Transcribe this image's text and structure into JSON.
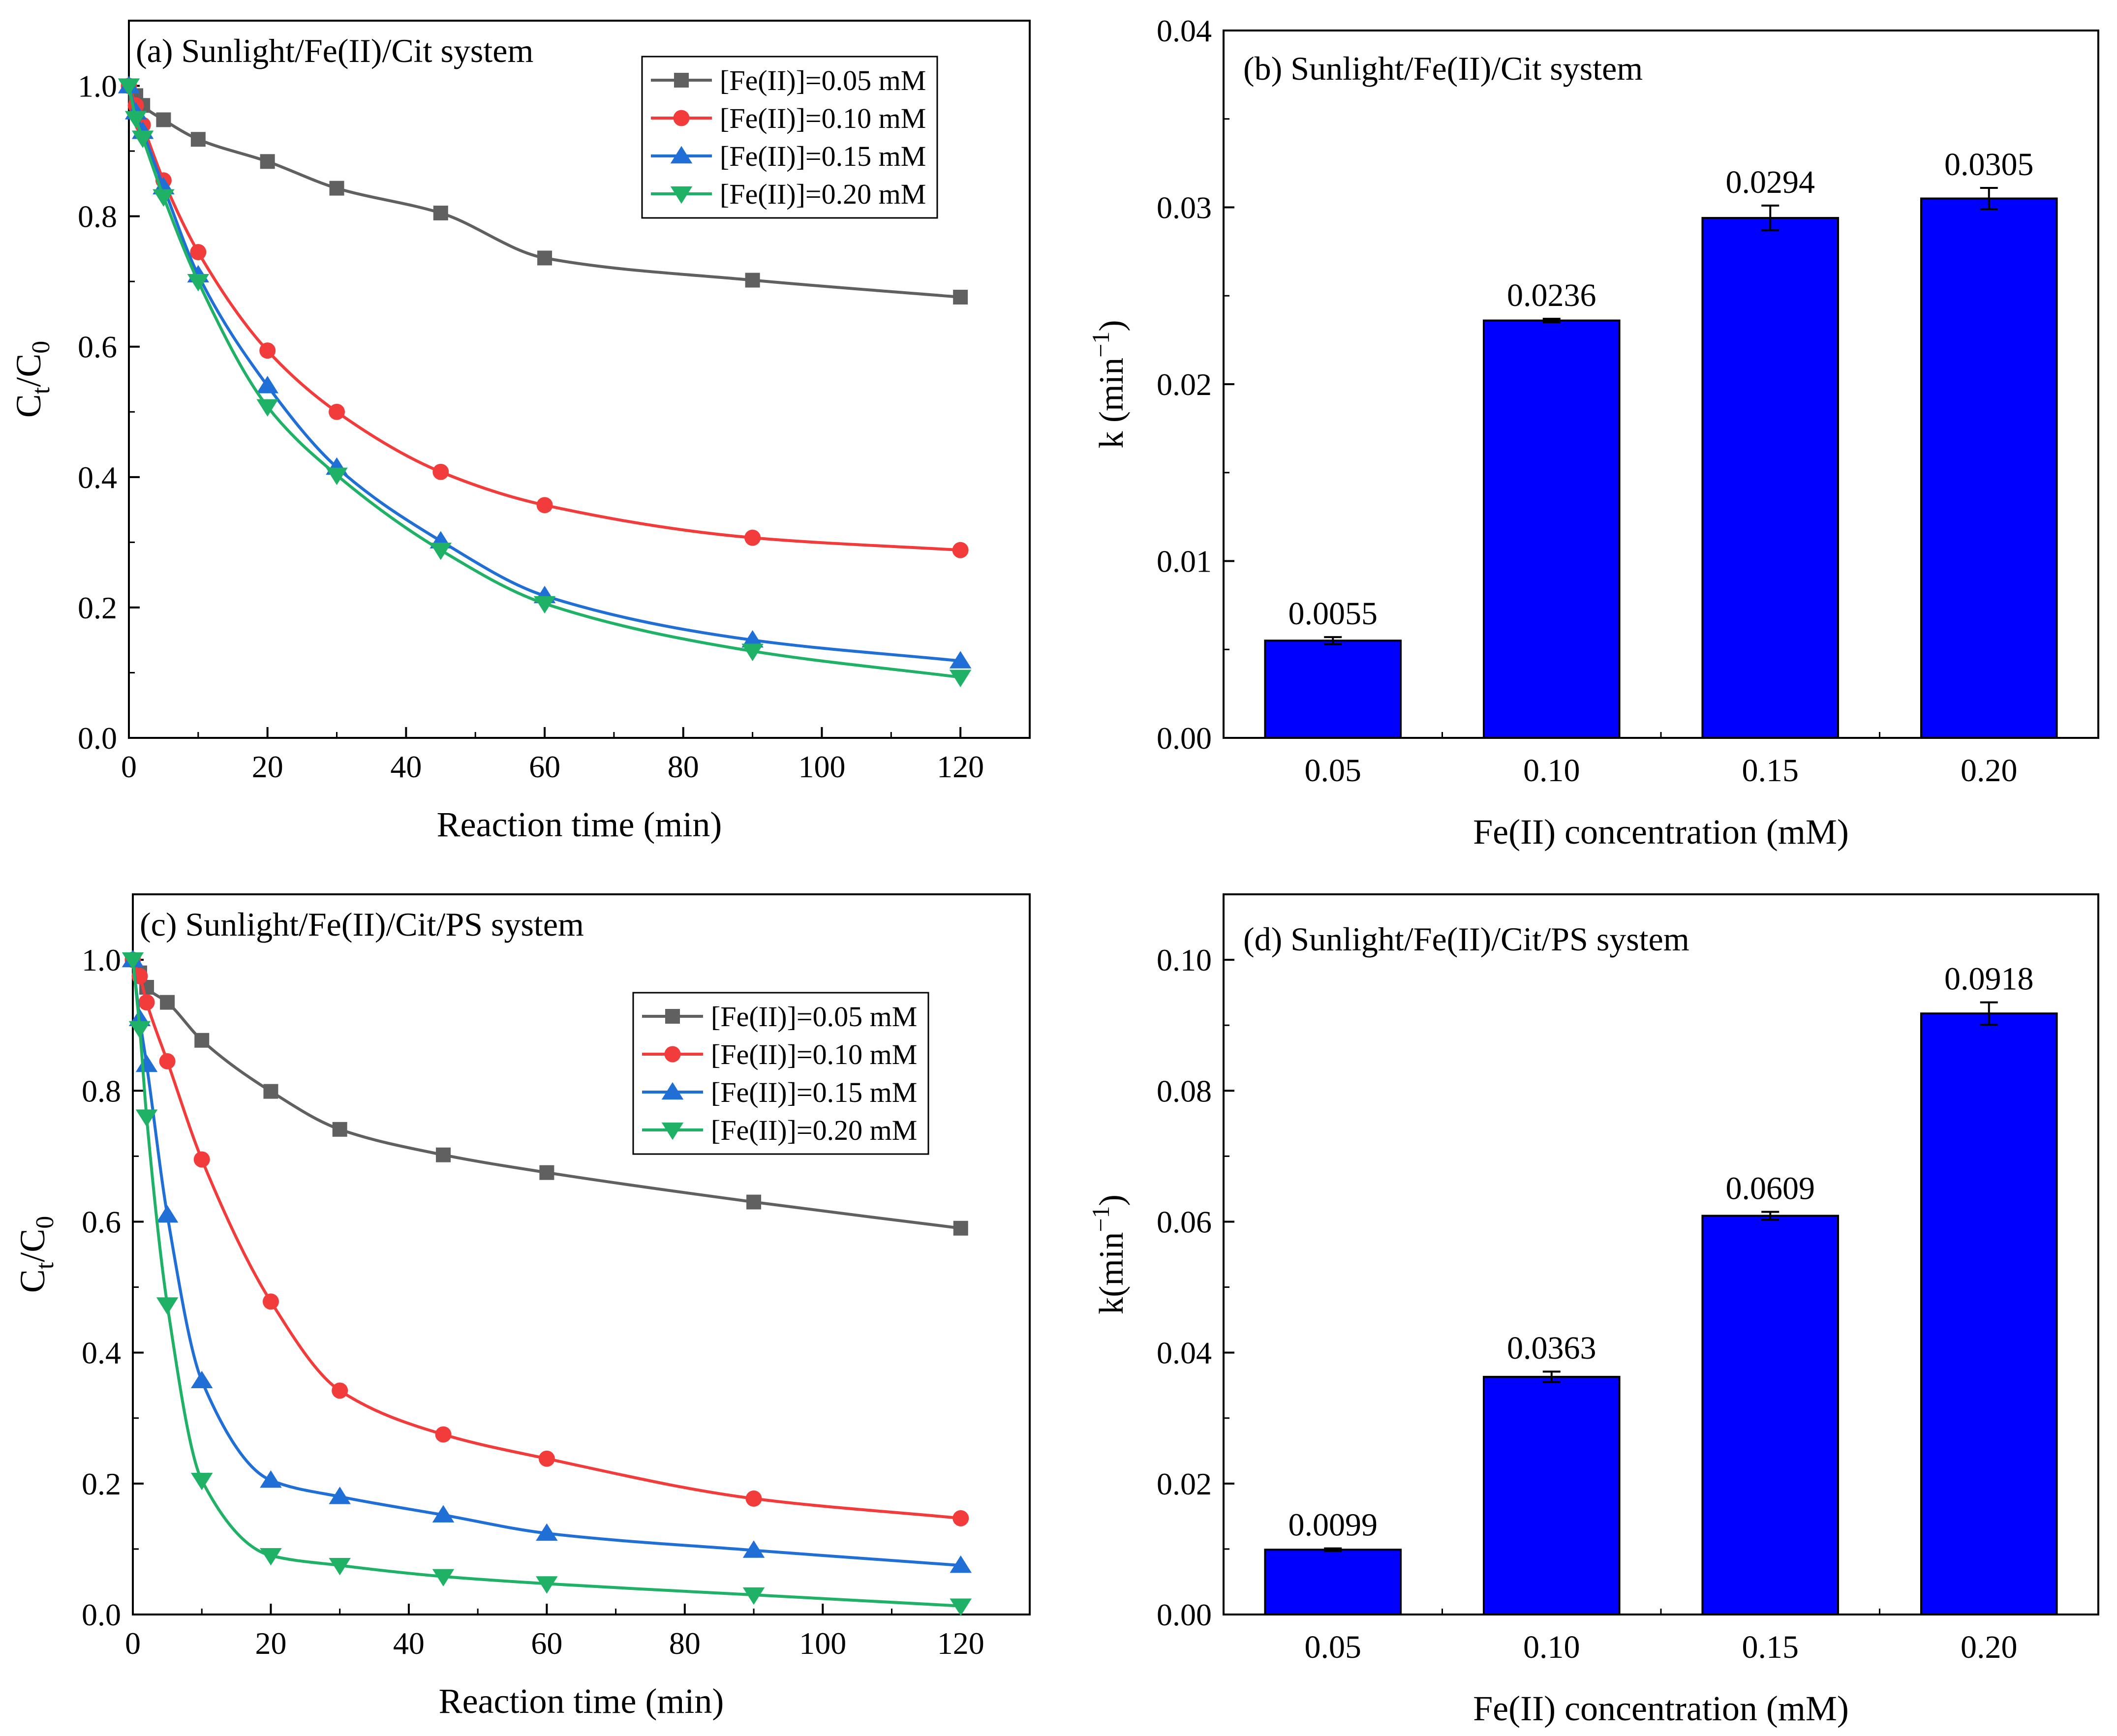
{
  "chart_data": [
    {
      "id": "a",
      "type": "line",
      "title": "(a) Sunlight/Fe(II)/Cit system",
      "xlabel": "Reaction time (min)",
      "ylabel": "Ct/C0",
      "xlim": [
        0,
        130
      ],
      "ylim": [
        0,
        1.1
      ],
      "xticks": [
        "0",
        "20",
        "40",
        "60",
        "80",
        "100",
        "120"
      ],
      "yticks": [
        "0.0",
        "0.2",
        "0.4",
        "0.6",
        "0.8",
        "1.0"
      ],
      "legend_position": "top-right",
      "x": [
        0,
        1,
        2,
        5,
        10,
        20,
        30,
        45,
        60,
        90,
        120
      ],
      "series": [
        {
          "name": "[Fe(II)]=0.05 mM",
          "color": "#606060",
          "marker": "square",
          "values": [
            1.0,
            0.985,
            0.97,
            0.948,
            0.918,
            0.884,
            0.843,
            0.805,
            0.736,
            0.702,
            0.676
          ]
        },
        {
          "name": "[Fe(II)]=0.10 mM",
          "color": "#f23c3c",
          "marker": "circle",
          "values": [
            1.0,
            0.97,
            0.94,
            0.855,
            0.745,
            0.594,
            0.5,
            0.408,
            0.357,
            0.307,
            0.288
          ]
        },
        {
          "name": "[Fe(II)]=0.15 mM",
          "color": "#1f6fd6",
          "marker": "triangle-up",
          "values": [
            1.0,
            0.96,
            0.93,
            0.845,
            0.71,
            0.54,
            0.415,
            0.302,
            0.218,
            0.15,
            0.118
          ]
        },
        {
          "name": "[Fe(II)]=0.20 mM",
          "color": "#1fb266",
          "marker": "triangle-down",
          "values": [
            1.0,
            0.95,
            0.92,
            0.83,
            0.7,
            0.508,
            0.403,
            0.288,
            0.206,
            0.133,
            0.093
          ]
        }
      ]
    },
    {
      "id": "b",
      "type": "bar",
      "title": "(b) Sunlight/Fe(II)/Cit system",
      "xlabel": "Fe(II) concentration (mM)",
      "ylabel": "k (min⁻¹)",
      "ylim": [
        0,
        0.04
      ],
      "yticks": [
        "0.00",
        "0.01",
        "0.02",
        "0.03",
        "0.04"
      ],
      "categories": [
        "0.05",
        "0.10",
        "0.15",
        "0.20"
      ],
      "values": [
        0.0055,
        0.0236,
        0.0294,
        0.0305
      ],
      "errors": [
        0.0002,
        0.0001,
        0.0007,
        0.0006
      ],
      "labels": [
        "0.0055",
        "0.0236",
        "0.0294",
        "0.0305"
      ],
      "color": "#0000ff"
    },
    {
      "id": "c",
      "type": "line",
      "title": "(c) Sunlight/Fe(II)/Cit/PS system",
      "xlabel": "Reaction time (min)",
      "ylabel": "Ct/C0",
      "xlim": [
        0,
        130
      ],
      "ylim": [
        0,
        1.1
      ],
      "xticks": [
        "0",
        "20",
        "40",
        "60",
        "80",
        "100",
        "120"
      ],
      "yticks": [
        "0.0",
        "0.2",
        "0.4",
        "0.6",
        "0.8",
        "1.0"
      ],
      "legend_position": "right",
      "x": [
        0,
        1,
        2,
        5,
        10,
        20,
        30,
        45,
        60,
        90,
        120
      ],
      "series": [
        {
          "name": "[Fe(II)]=0.05 mM",
          "color": "#606060",
          "marker": "square",
          "values": [
            1.0,
            0.98,
            0.958,
            0.935,
            0.877,
            0.799,
            0.741,
            0.702,
            0.675,
            0.63,
            0.59
          ]
        },
        {
          "name": "[Fe(II)]=0.10 mM",
          "color": "#f23c3c",
          "marker": "circle",
          "values": [
            1.0,
            0.975,
            0.935,
            0.845,
            0.695,
            0.478,
            0.342,
            0.275,
            0.238,
            0.177,
            0.147
          ]
        },
        {
          "name": "[Fe(II)]=0.15 mM",
          "color": "#1f6fd6",
          "marker": "triangle-up",
          "values": [
            1.0,
            0.91,
            0.84,
            0.61,
            0.357,
            0.205,
            0.18,
            0.152,
            0.124,
            0.098,
            0.075
          ]
        },
        {
          "name": "[Fe(II)]=0.20 mM",
          "color": "#1fb266",
          "marker": "triangle-down",
          "values": [
            1.0,
            0.895,
            0.76,
            0.473,
            0.205,
            0.09,
            0.075,
            0.058,
            0.047,
            0.03,
            0.013
          ]
        }
      ]
    },
    {
      "id": "d",
      "type": "bar",
      "title": "(d) Sunlight/Fe(II)/Cit/PS system",
      "xlabel": "Fe(II) concentration (mM)",
      "ylabel": "k(min⁻¹)",
      "ylim": [
        0,
        0.11
      ],
      "yticks": [
        "0.00",
        "0.02",
        "0.04",
        "0.06",
        "0.08",
        "0.10"
      ],
      "categories": [
        "0.05",
        "0.10",
        "0.15",
        "0.20"
      ],
      "values": [
        0.0099,
        0.0363,
        0.0609,
        0.0918
      ],
      "errors": [
        0.0002,
        0.0008,
        0.0006,
        0.0017
      ],
      "labels": [
        "0.0099",
        "0.0363",
        "0.0609",
        "0.0918"
      ],
      "color": "#0000ff"
    }
  ]
}
